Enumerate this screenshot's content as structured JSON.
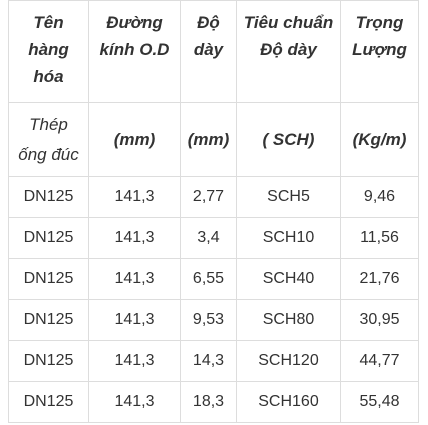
{
  "table": {
    "header": [
      "Tên hàng hóa",
      "Đường kính O.D",
      "Độ dày",
      "Tiêu chuẩn Độ dày",
      "Trọng Lượng"
    ],
    "units": [
      "Thép ống đúc",
      "(mm)",
      "(mm)",
      "( SCH)",
      "(Kg/m)"
    ],
    "rows": [
      [
        "DN125",
        "141,3",
        "2,77",
        "SCH5",
        "9,46"
      ],
      [
        "DN125",
        "141,3",
        "3,4",
        "SCH10",
        "11,56"
      ],
      [
        "DN125",
        "141,3",
        "6,55",
        "SCH40",
        "21,76"
      ],
      [
        "DN125",
        "141,3",
        "9,53",
        "SCH80",
        "30,95"
      ],
      [
        "DN125",
        "141,3",
        "14,3",
        "SCH120",
        "44,77"
      ],
      [
        "DN125",
        "141,3",
        "18,3",
        "SCH160",
        "55,48"
      ]
    ]
  }
}
